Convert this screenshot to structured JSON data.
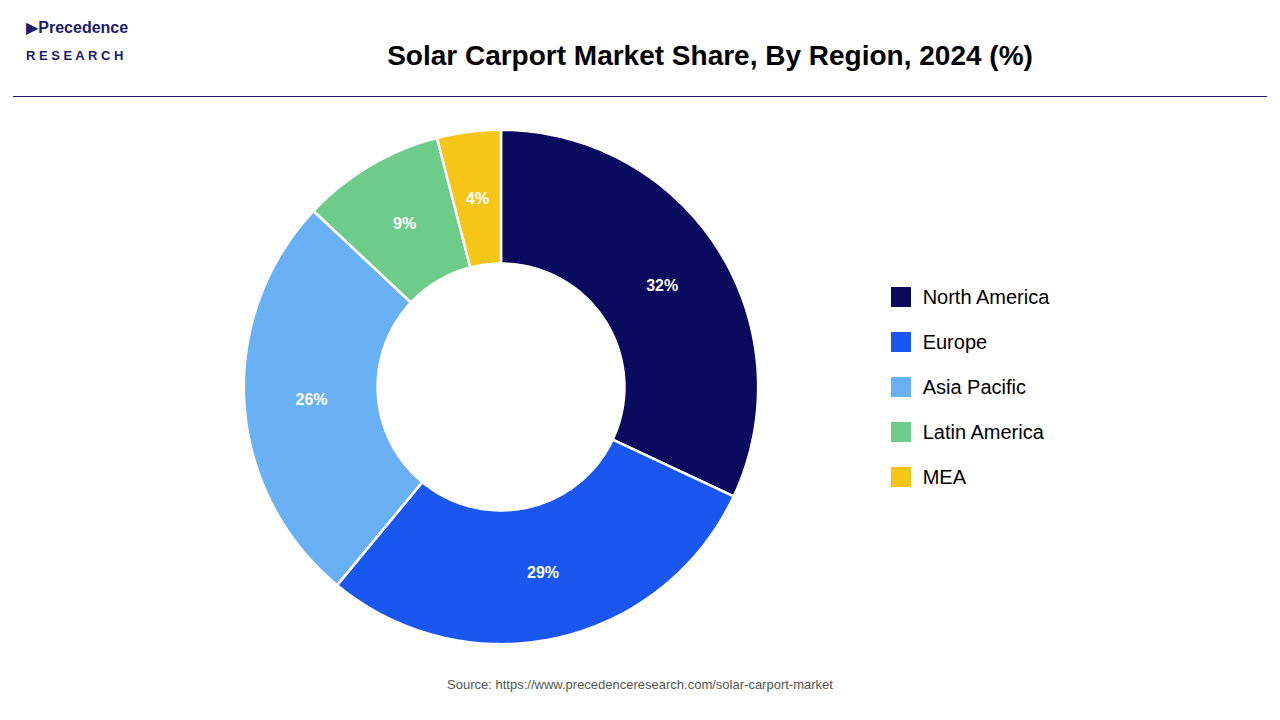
{
  "chart_data": {
    "type": "pie",
    "title": "Solar Carport Market Share, By Region, 2024 (%)",
    "categories": [
      "North America",
      "Europe",
      "Asia Pacific",
      "Latin America",
      "MEA"
    ],
    "values": [
      32,
      29,
      26,
      9,
      4
    ],
    "value_labels": [
      "32%",
      "29%",
      "26%",
      "9%",
      "4%"
    ],
    "colors": [
      "#0a0a5e",
      "#1a56f0",
      "#6ab0f5",
      "#6dcc8a",
      "#f5c518"
    ],
    "data_labels": true,
    "legend": "right",
    "annotations": [
      "▶Precedence",
      "R E S E A R C H",
      "Source: https://www.precedenceresearch.com/solar-carport-market"
    ]
  }
}
